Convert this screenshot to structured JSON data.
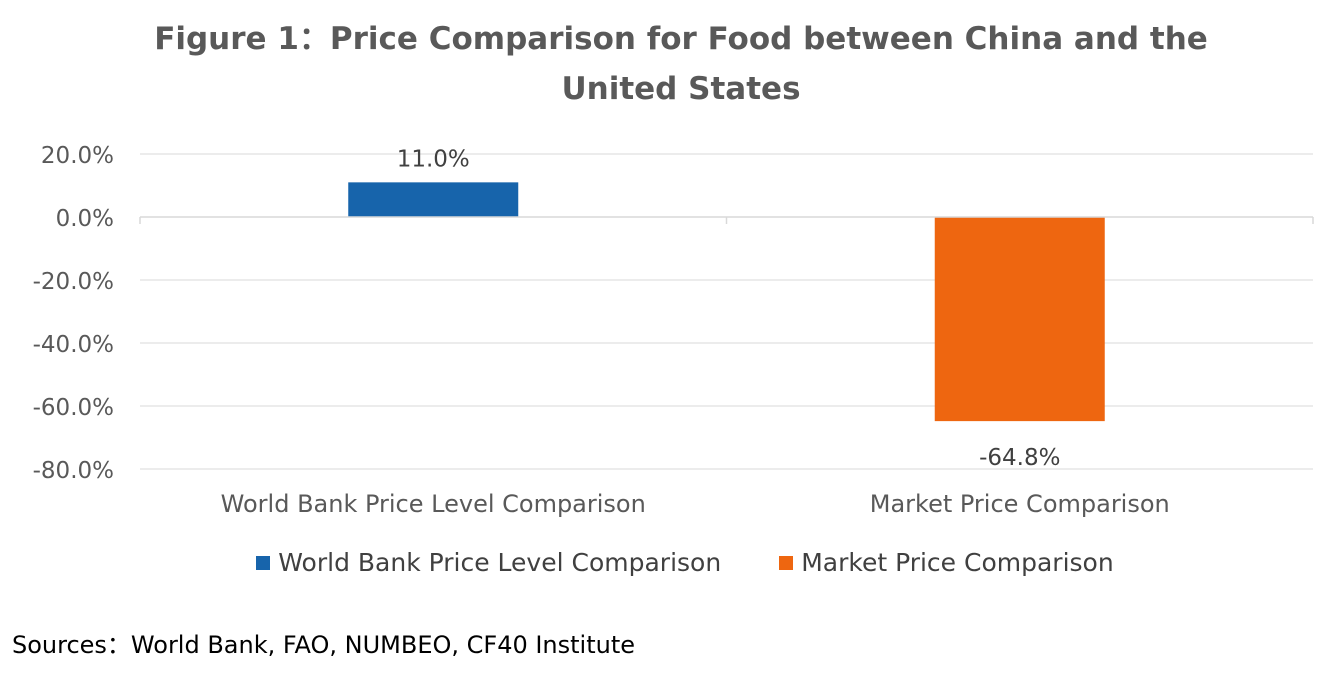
{
  "title_line1": "Figure 1：Price Comparison for Food between China and the",
  "title_line2": "United States",
  "source": "Sources：World Bank, FAO, NUMBEO, CF40 Institute",
  "chart_data": {
    "type": "bar",
    "categories": [
      "World Bank Price Level Comparison",
      "Market Price Comparison"
    ],
    "values": [
      11.0,
      -64.8
    ],
    "data_labels": [
      "11.0%",
      "-64.8%"
    ],
    "colors": [
      "#1764ab",
      "#ee6610"
    ],
    "ylim": [
      -80,
      20
    ],
    "yticks": [
      20,
      0,
      -20,
      -40,
      -60,
      -80
    ],
    "ytick_labels": [
      "20.0%",
      "0.0%",
      "-20.0%",
      "-40.0%",
      "-60.0%",
      "-80.0%"
    ],
    "grid": true,
    "legend_position": "bottom",
    "legend": [
      {
        "label": "World Bank Price Level Comparison",
        "color": "#1764ab"
      },
      {
        "label": "Market Price Comparison",
        "color": "#ee6610"
      }
    ]
  }
}
